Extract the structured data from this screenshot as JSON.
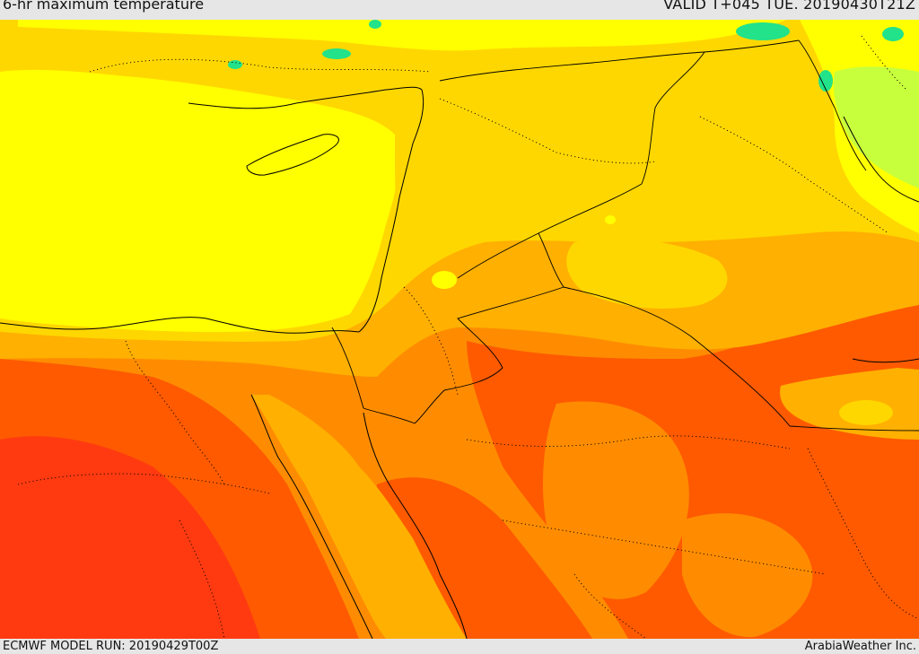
{
  "header": {
    "product_title": "6-hr maximum temperature",
    "valid_time": "VALID T+045 TUE. 20190430T21Z"
  },
  "footer": {
    "model_run": "ECMWF MODEL RUN: 20190429T00Z",
    "credit": "ArabiaWeather Inc."
  },
  "colors": {
    "cold_green": "#22e28a",
    "light_green": "#c8ff3c",
    "yellow": "#ffff00",
    "gold": "#ffd700",
    "amber": "#ffb000",
    "orange": "#ff8c00",
    "orange_red": "#ff5a00",
    "red": "#ff3a10",
    "border_line": "#000000"
  }
}
